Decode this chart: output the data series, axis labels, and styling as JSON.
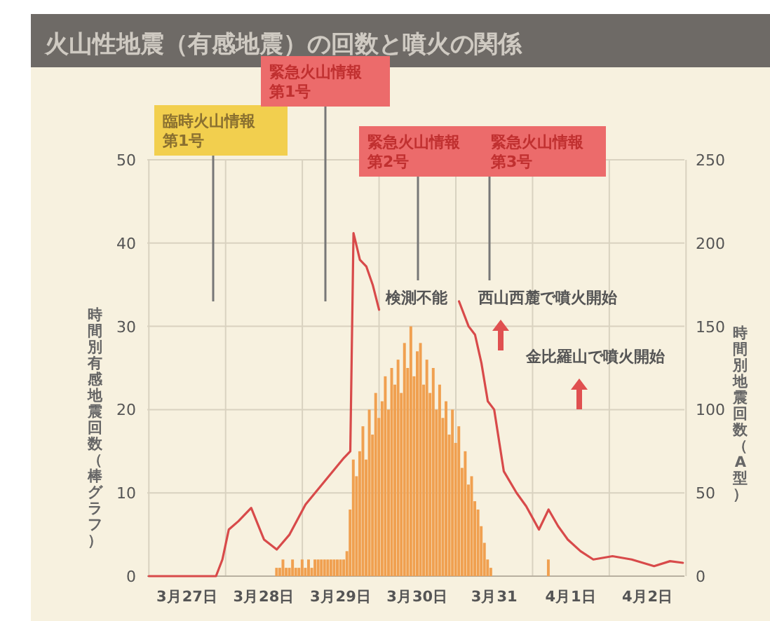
{
  "chart_data": {
    "type": "bar",
    "title": "火山性地震（有感地震）の回数と噴火の関係",
    "ylabel": "時間別有感地震回数（棒グラフ）",
    "y2label": "時間別地震回数（A型）",
    "categories": [
      null,
      null,
      null,
      null,
      null,
      null,
      null,
      null,
      null,
      null,
      null,
      null,
      "3月27日",
      null,
      null,
      null,
      null,
      null,
      null,
      null,
      null,
      null,
      null,
      null,
      null,
      null,
      null,
      null,
      null,
      null,
      null,
      null,
      null,
      null,
      null,
      null,
      "3月28日",
      null,
      null,
      null,
      null,
      null,
      null,
      null,
      null,
      null,
      null,
      null,
      null,
      null,
      null,
      null,
      null,
      null,
      null,
      null,
      null,
      null,
      null,
      null,
      "3月29日",
      null,
      null,
      null,
      null,
      null,
      null,
      null,
      null,
      null,
      null,
      null,
      null,
      null,
      null,
      null,
      null,
      null,
      null,
      null,
      null,
      null,
      null,
      null,
      "3月30日",
      null,
      null,
      null,
      null,
      null,
      null,
      null,
      null,
      null,
      null,
      null,
      null,
      null,
      null,
      null,
      null,
      null,
      null,
      null,
      null,
      null,
      null,
      null,
      "3月31",
      null,
      null,
      null,
      null,
      null,
      null,
      null,
      null,
      null,
      null,
      null,
      null,
      null,
      null,
      null,
      null,
      null,
      null,
      null,
      null,
      null,
      null,
      null,
      "4月1日",
      null,
      null,
      null,
      null,
      null,
      null,
      null,
      null,
      null,
      null,
      null,
      null,
      null,
      null,
      null,
      null,
      null,
      null,
      null,
      null,
      null,
      null,
      null,
      "4月2日",
      null,
      null,
      null,
      null,
      null,
      null,
      null,
      null,
      null,
      null,
      null
    ],
    "series": [
      {
        "color": "#f0a050",
        "axis": "y",
        "values": [
          0,
          0,
          0,
          0,
          0,
          0,
          0,
          0,
          0,
          0,
          0,
          0,
          0,
          0,
          0,
          0,
          0,
          0,
          0,
          0,
          0,
          0,
          0,
          0,
          0,
          0,
          0,
          0,
          0,
          0,
          0,
          0,
          0,
          0,
          0,
          0,
          0,
          0,
          0,
          0,
          1,
          1,
          2,
          1,
          1,
          2,
          1,
          1,
          2,
          1,
          2,
          1,
          2,
          2,
          2,
          2,
          2,
          2,
          2,
          2,
          2,
          2,
          3,
          8,
          14,
          12,
          15,
          18,
          14,
          20,
          17,
          22,
          19,
          21,
          24,
          20,
          25,
          23,
          26,
          22,
          28,
          25,
          30,
          24,
          27,
          28,
          23,
          26,
          22,
          25,
          20,
          23,
          19,
          21,
          17,
          20,
          16,
          18,
          13,
          15,
          11,
          12,
          9,
          8,
          6,
          4,
          2,
          1,
          0,
          0,
          0,
          0,
          0,
          0,
          0,
          0,
          0,
          0,
          0,
          0,
          0,
          0,
          0,
          0,
          0,
          2,
          0,
          0,
          0,
          0,
          0,
          0,
          0,
          0,
          0,
          0,
          0,
          0,
          0,
          0,
          0,
          0,
          0,
          0,
          0,
          0,
          0,
          0,
          0,
          0,
          0,
          0,
          0,
          0,
          0,
          0,
          0,
          0,
          0,
          0,
          0,
          0,
          0,
          0,
          0,
          0,
          0,
          0
        ]
      },
      {
        "type": "line",
        "color": "#d84a4a",
        "axis": "y2",
        "values": [
          0,
          null,
          null,
          null,
          null,
          null,
          null,
          null,
          null,
          null,
          null,
          null,
          null,
          null,
          null,
          null,
          null,
          null,
          null,
          null,
          null,
          0,
          null,
          10,
          null,
          28,
          null,
          null,
          33,
          null,
          null,
          null,
          41,
          null,
          null,
          null,
          22,
          null,
          null,
          null,
          16,
          null,
          null,
          null,
          25,
          null,
          null,
          null,
          null,
          43,
          null,
          null,
          null,
          null,
          null,
          57,
          null,
          null,
          null,
          null,
          null,
          71,
          null,
          75,
          206,
          null,
          190,
          null,
          186,
          null,
          175,
          null,
          160,
          null,
          null,
          null,
          null,
          null,
          null,
          null,
          null,
          null,
          null,
          null,
          null,
          null,
          null,
          null,
          null,
          null,
          null,
          null,
          null,
          null,
          null,
          null,
          null,
          null,
          null,
          null,
          null,
          null,
          null,
          null,
          null,
          null,
          null,
          null,
          null,
          null,
          null,
          null,
          null,
          null,
          null,
          null,
          null,
          null,
          null,
          null,
          null,
          null,
          null,
          null,
          null,
          null,
          null,
          null,
          null,
          null,
          null,
          null,
          null,
          null,
          null,
          null,
          null,
          null,
          null,
          null,
          null,
          null,
          null,
          null,
          null,
          null,
          null,
          null,
          null,
          null,
          null,
          null,
          null,
          null,
          null,
          null,
          null,
          null,
          null,
          null,
          null,
          null,
          null,
          null,
          null,
          null,
          null,
          null
        ]
      },
      {
        "type": "line",
        "color": "#d84a4a",
        "axis": "y2",
        "values": [
          null,
          null,
          null,
          null,
          null,
          null,
          null,
          null,
          null,
          null,
          null,
          null,
          null,
          null,
          null,
          null,
          null,
          null,
          null,
          null,
          null,
          null,
          null,
          null,
          null,
          null,
          null,
          null,
          null,
          null,
          null,
          null,
          null,
          null,
          null,
          null,
          null,
          null,
          null,
          null,
          null,
          null,
          null,
          null,
          null,
          null,
          null,
          null,
          null,
          null,
          null,
          null,
          null,
          null,
          null,
          null,
          null,
          null,
          null,
          null,
          null,
          null,
          null,
          null,
          null,
          null,
          null,
          null,
          null,
          null,
          null,
          null,
          null,
          null,
          null,
          null,
          null,
          null,
          null,
          null,
          null,
          null,
          null,
          null,
          null,
          null,
          null,
          null,
          null,
          null,
          null,
          null,
          null,
          null,
          null,
          null,
          null,
          165,
          null,
          null,
          150,
          null,
          145,
          null,
          128,
          null,
          105,
          null,
          100,
          null,
          null,
          63,
          null,
          null,
          null,
          50,
          null,
          null,
          42,
          null,
          null,
          null,
          28,
          null,
          null,
          40,
          null,
          null,
          30,
          null,
          null,
          22,
          null,
          null,
          null,
          15,
          null,
          null,
          null,
          10,
          null,
          null,
          null,
          null,
          null,
          12,
          null,
          null,
          null,
          null,
          null,
          10,
          null,
          null,
          null,
          null,
          null,
          null,
          6,
          null,
          null,
          null,
          null,
          9,
          null,
          null,
          null,
          8
        ]
      }
    ],
    "ylim": [
      0,
      50
    ],
    "yticks": [
      0,
      10,
      20,
      30,
      40,
      50
    ],
    "y2lim": [
      0,
      250
    ],
    "y2ticks": [
      0,
      50,
      100,
      150,
      200,
      250
    ],
    "grid": true,
    "annotations": [
      "臨時火山情報第1号",
      "緊急火山情報第1号",
      "緊急火山情報第2号",
      "緊急火山情報第3号",
      "検測不能",
      "西山西麓で噴火開始",
      "金比羅山で噴火開始"
    ]
  }
}
